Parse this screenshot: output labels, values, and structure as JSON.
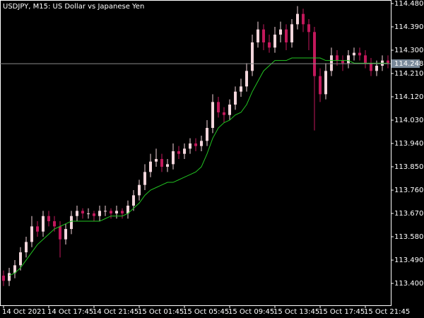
{
  "chart_data": {
    "type": "candlestick",
    "title": "USDJPY, M15:  US Dollar vs Japanese Yen",
    "categories": [
      "14 Oct 2021",
      null,
      null,
      null,
      null,
      null,
      null,
      null,
      "14 Oct 17:45",
      null,
      null,
      null,
      null,
      null,
      null,
      null,
      "14 Oct 21:45",
      null,
      null,
      null,
      null,
      null,
      null,
      null,
      "15 Oct 01:45",
      null,
      null,
      null,
      null,
      null,
      null,
      null,
      "15 Oct 05:45",
      null,
      null,
      null,
      null,
      null,
      null,
      null,
      "15 Oct 09:45",
      null,
      null,
      null,
      null,
      null,
      null,
      null,
      "15 Oct 13:45",
      null,
      null,
      null,
      null,
      null,
      null,
      null,
      "15 Oct 17:45",
      null,
      null,
      null,
      null,
      null,
      null,
      null,
      "15 Oct 21:45",
      null,
      null,
      null,
      null
    ],
    "open": [
      113.43,
      113.41,
      113.44,
      113.47,
      113.52,
      113.56,
      113.62,
      113.6,
      113.66,
      113.64,
      113.62,
      113.57,
      113.61,
      113.66,
      113.68,
      113.67,
      113.67,
      113.66,
      113.68,
      113.68,
      113.67,
      113.68,
      113.67,
      113.7,
      113.74,
      113.78,
      113.83,
      113.87,
      113.88,
      113.85,
      113.86,
      113.91,
      113.9,
      113.92,
      113.94,
      113.93,
      113.95,
      114.0,
      114.1,
      114.06,
      114.05,
      114.09,
      114.14,
      114.16,
      114.22,
      114.33,
      114.38,
      114.33,
      114.31,
      114.36,
      114.38,
      114.33,
      114.4,
      114.44,
      114.4,
      114.37,
      114.2,
      114.13,
      114.22,
      114.28,
      114.26,
      114.25,
      114.28,
      114.29,
      114.28,
      114.25,
      114.22,
      114.24,
      114.26
    ],
    "high": [
      113.45,
      113.46,
      113.49,
      113.54,
      113.58,
      113.66,
      113.64,
      113.68,
      113.68,
      113.66,
      113.64,
      113.63,
      113.68,
      113.7,
      113.69,
      113.69,
      113.68,
      113.7,
      113.7,
      113.69,
      113.7,
      113.69,
      113.72,
      113.76,
      113.8,
      113.86,
      113.9,
      113.92,
      113.9,
      113.88,
      113.94,
      113.93,
      113.94,
      113.96,
      113.96,
      113.97,
      114.03,
      114.13,
      114.12,
      114.08,
      114.11,
      114.16,
      114.19,
      114.25,
      114.36,
      114.41,
      114.4,
      114.36,
      114.39,
      114.41,
      114.4,
      114.42,
      114.47,
      114.46,
      114.42,
      114.39,
      114.23,
      114.25,
      114.31,
      114.3,
      114.28,
      114.3,
      114.31,
      114.31,
      114.3,
      114.27,
      114.26,
      114.28,
      114.28
    ],
    "low": [
      113.39,
      113.39,
      113.42,
      113.45,
      113.5,
      113.54,
      113.58,
      113.58,
      113.62,
      113.6,
      113.5,
      113.55,
      113.59,
      113.64,
      113.65,
      113.65,
      113.64,
      113.64,
      113.66,
      113.65,
      113.65,
      113.65,
      113.65,
      113.68,
      113.72,
      113.76,
      113.81,
      113.85,
      113.83,
      113.83,
      113.84,
      113.88,
      113.88,
      113.9,
      113.91,
      113.91,
      113.93,
      113.98,
      114.04,
      114.02,
      114.03,
      114.07,
      114.12,
      114.14,
      114.2,
      114.31,
      114.3,
      114.29,
      114.29,
      114.33,
      114.3,
      114.31,
      114.38,
      114.37,
      114.3,
      113.99,
      114.1,
      114.11,
      114.2,
      114.24,
      114.22,
      114.23,
      114.26,
      114.26,
      114.23,
      114.2,
      114.2,
      114.22,
      114.23
    ],
    "close": [
      113.41,
      113.44,
      113.47,
      113.52,
      113.56,
      113.62,
      113.6,
      113.66,
      113.64,
      113.62,
      113.57,
      113.61,
      113.66,
      113.68,
      113.67,
      113.67,
      113.66,
      113.68,
      113.68,
      113.67,
      113.68,
      113.67,
      113.7,
      113.74,
      113.78,
      113.83,
      113.87,
      113.88,
      113.85,
      113.86,
      113.91,
      113.9,
      113.92,
      113.94,
      113.93,
      113.95,
      114.0,
      114.1,
      114.06,
      114.05,
      114.09,
      114.14,
      114.16,
      114.22,
      114.33,
      114.38,
      114.33,
      114.31,
      114.36,
      114.38,
      114.33,
      114.4,
      114.44,
      114.4,
      114.37,
      114.2,
      114.13,
      114.22,
      114.28,
      114.26,
      114.25,
      114.28,
      114.29,
      114.28,
      114.25,
      114.22,
      114.24,
      114.26,
      114.25
    ],
    "up_color": "#f3d6dc",
    "down_color": "#c2185b",
    "line": {
      "color": "#22c422",
      "values": [
        null,
        113.43,
        113.44,
        113.46,
        113.49,
        113.52,
        113.55,
        113.57,
        113.59,
        113.61,
        113.62,
        113.63,
        113.64,
        113.64,
        113.64,
        113.64,
        113.64,
        113.64,
        113.65,
        113.66,
        113.66,
        113.66,
        113.67,
        113.69,
        113.71,
        113.74,
        113.76,
        113.77,
        113.78,
        113.79,
        113.79,
        113.8,
        113.81,
        113.82,
        113.83,
        113.85,
        113.9,
        113.96,
        114.0,
        114.02,
        114.03,
        114.05,
        114.06,
        114.09,
        114.14,
        114.18,
        114.22,
        114.24,
        114.26,
        114.26,
        114.26,
        114.27,
        114.27,
        114.27,
        114.27,
        114.27,
        114.27,
        114.26,
        114.26,
        114.26,
        114.26,
        114.26,
        114.25,
        114.25,
        114.25,
        114.25,
        114.25,
        114.25,
        114.25
      ]
    },
    "current_price": 114.248,
    "ylim": [
      113.3156,
      114.4936
    ],
    "yticks": [
      {
        "value": 114.48,
        "label": "114.480"
      },
      {
        "value": 114.39,
        "label": "114.390"
      },
      {
        "value": 114.3,
        "label": "114.300"
      },
      {
        "value": 114.21,
        "label": "114.210"
      },
      {
        "value": 114.12,
        "label": "114.120"
      },
      {
        "value": 114.03,
        "label": "114.030"
      },
      {
        "value": 113.94,
        "label": "113.940"
      },
      {
        "value": 113.85,
        "label": "113.850"
      },
      {
        "value": 113.76,
        "label": "113.760"
      },
      {
        "value": 113.67,
        "label": "113.670"
      },
      {
        "value": 113.58,
        "label": "113.580"
      },
      {
        "value": 113.49,
        "label": "113.490"
      },
      {
        "value": 113.4,
        "label": "113.400"
      }
    ]
  }
}
